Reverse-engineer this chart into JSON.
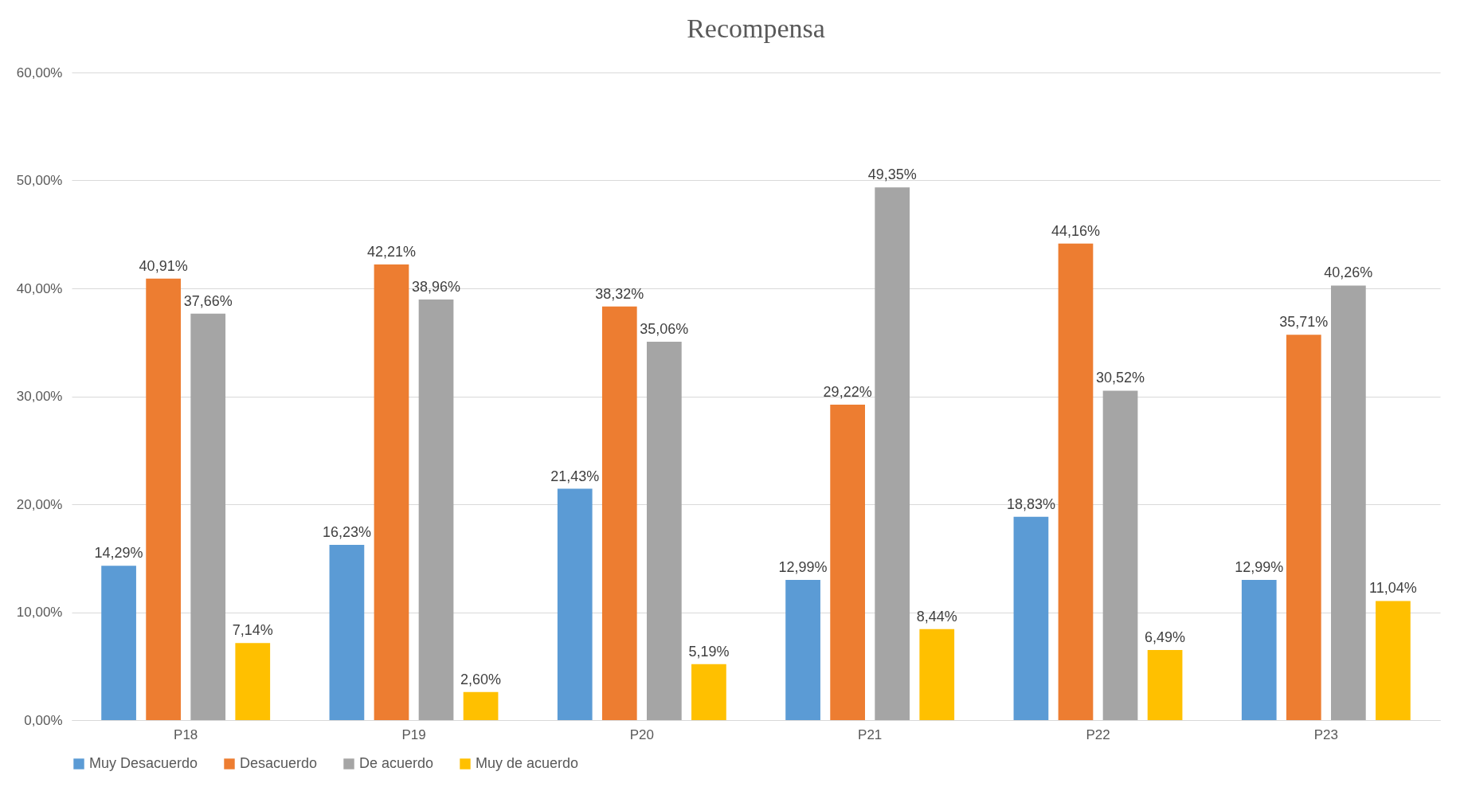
{
  "chart_data": {
    "type": "bar",
    "title": "Recompensa",
    "categories": [
      "P18",
      "P19",
      "P20",
      "P21",
      "P22",
      "P23"
    ],
    "series": [
      {
        "name": "Muy Desacuerdo",
        "color": "#5b9bd5",
        "values": [
          14.29,
          16.23,
          21.43,
          12.99,
          18.83,
          12.99
        ],
        "value_labels": [
          "14,29%",
          "16,23%",
          "21,43%",
          "12,99%",
          "18,83%",
          "12,99%"
        ]
      },
      {
        "name": "Desacuerdo",
        "color": "#ed7d31",
        "values": [
          40.91,
          42.21,
          38.32,
          29.22,
          44.16,
          35.71
        ],
        "value_labels": [
          "40,91%",
          "42,21%",
          "38,32%",
          "29,22%",
          "44,16%",
          "35,71%"
        ]
      },
      {
        "name": "De acuerdo",
        "color": "#a5a5a5",
        "values": [
          37.66,
          38.96,
          35.06,
          49.35,
          30.52,
          40.26
        ],
        "value_labels": [
          "37,66%",
          "38,96%",
          "35,06%",
          "49,35%",
          "30,52%",
          "40,26%"
        ]
      },
      {
        "name": "Muy de acuerdo",
        "color": "#ffc000",
        "values": [
          7.14,
          2.6,
          5.19,
          8.44,
          6.49,
          11.04
        ],
        "value_labels": [
          "7,14%",
          "2,60%",
          "5,19%",
          "8,44%",
          "6,49%",
          "11,04%"
        ]
      }
    ],
    "ylim": [
      0,
      60
    ],
    "yticks": [
      {
        "value": 0,
        "label": "0,00%"
      },
      {
        "value": 10,
        "label": "10,00%"
      },
      {
        "value": 20,
        "label": "20,00%"
      },
      {
        "value": 30,
        "label": "30,00%"
      },
      {
        "value": 40,
        "label": "40,00%"
      },
      {
        "value": 50,
        "label": "50,00%"
      },
      {
        "value": 60,
        "label": "60,00%"
      }
    ],
    "grid": "y",
    "legend": "bottom"
  }
}
